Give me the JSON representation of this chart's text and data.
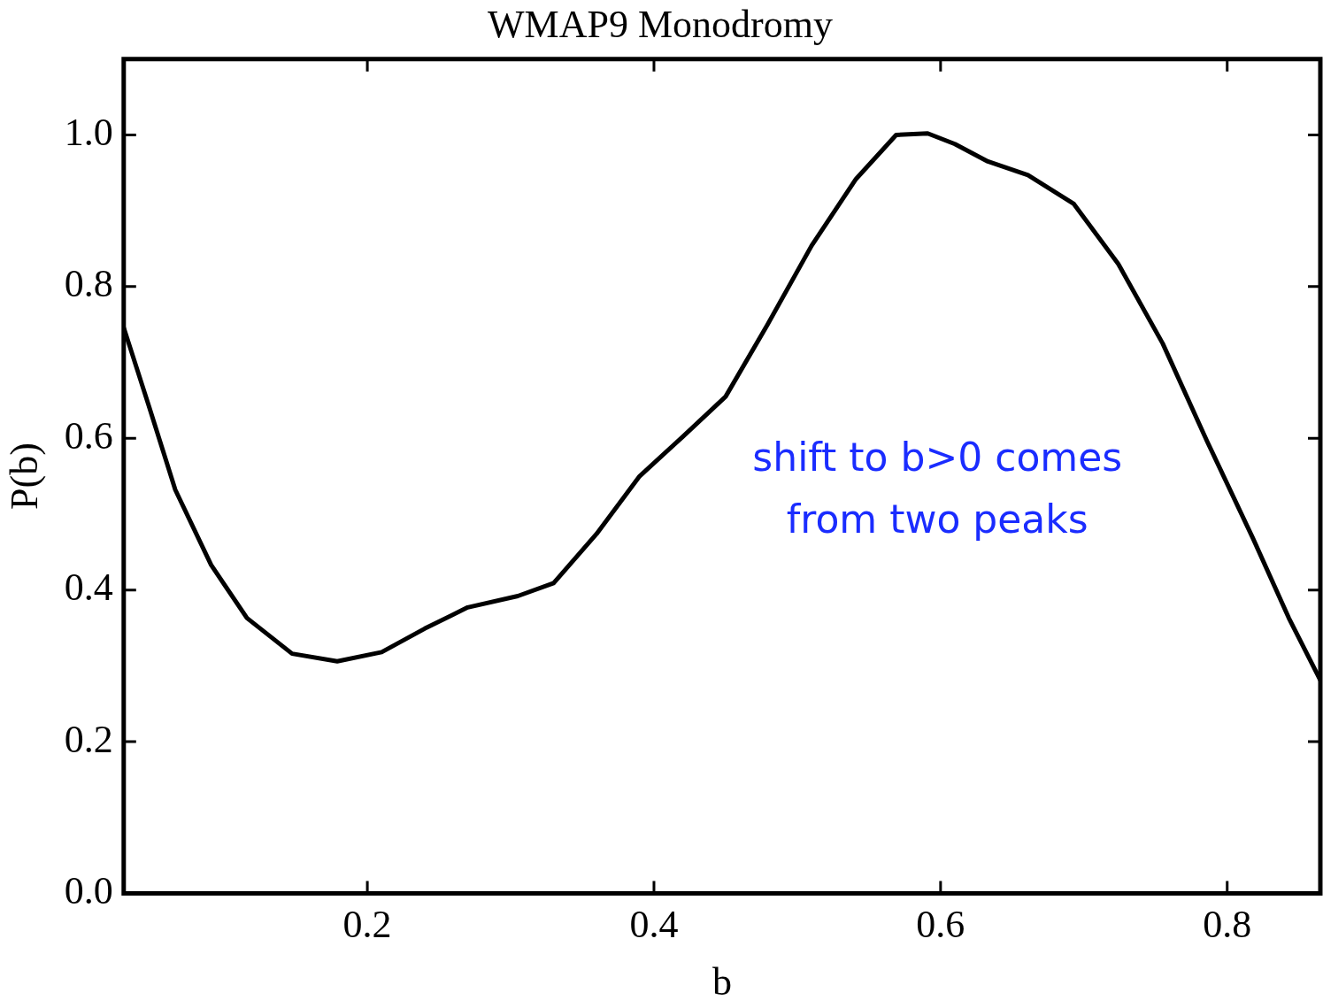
{
  "chart_data": {
    "type": "line",
    "title": "WMAP9 Monodromy",
    "xlabel": "b",
    "ylabel": "P(b)",
    "x": [
      0.03,
      0.0475,
      0.066,
      0.091,
      0.116,
      0.1475,
      0.179,
      0.21,
      0.24,
      0.27,
      0.305,
      0.33,
      0.36,
      0.39,
      0.42,
      0.45,
      0.479,
      0.51,
      0.541,
      0.569,
      0.591,
      0.61,
      0.633,
      0.661,
      0.693,
      0.724,
      0.755,
      0.786,
      0.818,
      0.843,
      0.865
    ],
    "series": [
      {
        "color": "#000000",
        "values": [
          0.746,
          0.643,
          0.532,
          0.433,
          0.363,
          0.316,
          0.306,
          0.318,
          0.349,
          0.377,
          0.392,
          0.409,
          0.474,
          0.55,
          0.602,
          0.655,
          0.749,
          0.854,
          0.942,
          1.0,
          1.002,
          0.988,
          0.965,
          0.947,
          0.909,
          0.83,
          0.725,
          0.596,
          0.468,
          0.363,
          0.281
        ]
      }
    ],
    "xlim": [
      0.03,
      0.865
    ],
    "xticks": [
      0.2,
      0.4,
      0.6,
      0.8
    ],
    "ylim": [
      0,
      1.1
    ],
    "yticks": [
      {
        "value": 0,
        "label": "0.0"
      },
      0.2,
      0.4,
      0.6,
      0.8,
      {
        "value": 1,
        "label": "1.0"
      }
    ],
    "annotations": [
      "shift to b>0 comes from two peaks"
    ],
    "marker": "none",
    "line_style": "solid",
    "grid": false,
    "legend": false
  }
}
